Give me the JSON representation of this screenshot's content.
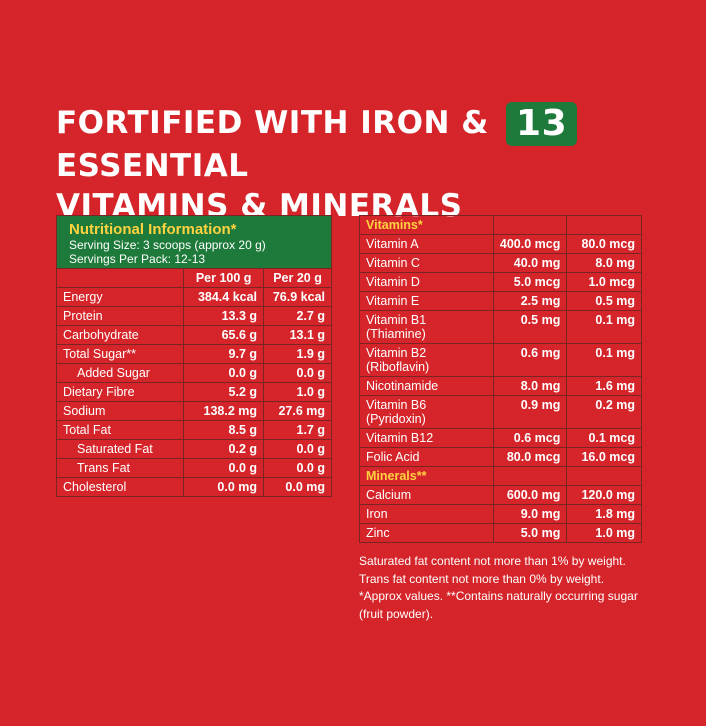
{
  "headline": {
    "line1_before": "FORTIFIED WITH IRON &",
    "badge": "13",
    "line1_after": "ESSENTIAL",
    "line2": "VITAMINS & MINERALS"
  },
  "nutrition": {
    "title": "Nutritional Information*",
    "serving_size": "Serving Size: 3 scoops (approx 20 g)",
    "servings_per_pack": "Servings Per Pack: 12-13",
    "col1": "Per 100 g",
    "col2": "Per 20 g",
    "rows": [
      {
        "label": "Energy",
        "v1": "384.4 kcal",
        "v2": "76.9 kcal"
      },
      {
        "label": "Protein",
        "v1": "13.3 g",
        "v2": "2.7 g"
      },
      {
        "label": "Carbohydrate",
        "v1": "65.6 g",
        "v2": "13.1 g"
      },
      {
        "label": "Total Sugar**",
        "v1": "9.7 g",
        "v2": "1.9 g"
      },
      {
        "label": "Added Sugar",
        "v1": "0.0 g",
        "v2": "0.0 g"
      },
      {
        "label": "Dietary Fibre",
        "v1": "5.2 g",
        "v2": "1.0 g"
      },
      {
        "label": "Sodium",
        "v1": "138.2 mg",
        "v2": "27.6 mg"
      },
      {
        "label": "Total Fat",
        "v1": "8.5 g",
        "v2": "1.7 g"
      },
      {
        "label": "Saturated Fat",
        "v1": "0.2 g",
        "v2": "0.0 g"
      },
      {
        "label": "Trans Fat",
        "v1": "0.0 g",
        "v2": "0.0 g"
      },
      {
        "label": "Cholesterol",
        "v1": "0.0 mg",
        "v2": "0.0 mg"
      }
    ]
  },
  "vitamins": {
    "title": "Vitamins*",
    "rows": [
      {
        "label": "Vitamin A",
        "v1": "400.0 mcg",
        "v2": "80.0 mcg"
      },
      {
        "label": "Vitamin C",
        "v1": "40.0 mg",
        "v2": "8.0 mg"
      },
      {
        "label": "Vitamin D",
        "v1": "5.0 mcg",
        "v2": "1.0 mcg"
      },
      {
        "label": "Vitamin E",
        "v1": "2.5 mg",
        "v2": "0.5 mg"
      },
      {
        "label": "Vitamin B1",
        "label2": "(Thiamine)",
        "v1": "0.5 mg",
        "v2": "0.1 mg"
      },
      {
        "label": "Vitamin B2",
        "label2": "(Riboflavin)",
        "v1": "0.6 mg",
        "v2": "0.1 mg"
      },
      {
        "label": "Nicotinamide",
        "v1": "8.0 mg",
        "v2": "1.6 mg"
      },
      {
        "label": "Vitamin B6",
        "label2": "(Pyridoxin)",
        "v1": "0.9 mg",
        "v2": "0.2 mg"
      },
      {
        "label": "Vitamin B12",
        "v1": "0.6 mcg",
        "v2": "0.1 mcg"
      },
      {
        "label": "Folic Acid",
        "v1": "80.0 mcg",
        "v2": "16.0 mcg"
      }
    ]
  },
  "minerals": {
    "title": "Minerals**",
    "rows": [
      {
        "label": "Calcium",
        "v1": "600.0 mg",
        "v2": "120.0 mg"
      },
      {
        "label": "Iron",
        "v1": "9.0 mg",
        "v2": "1.8 mg"
      },
      {
        "label": "Zinc",
        "v1": "5.0 mg",
        "v2": "1.0 mg"
      }
    ]
  },
  "notes": [
    "Saturated fat content not more than 1% by weight.",
    "Trans fat content not more than 0% by weight.",
    "*Approx values. **Contains naturally occurring sugar",
    "(fruit powder)."
  ]
}
